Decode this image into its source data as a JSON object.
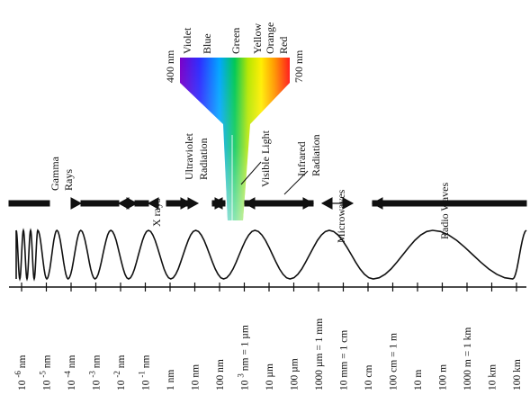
{
  "colors": {
    "ink": "#111111",
    "spectrum": [
      "#7a00c8",
      "#2d2dff",
      "#00a6ff",
      "#00c853",
      "#b6e600",
      "#ffee00",
      "#ff9800",
      "#ff1a1a"
    ]
  },
  "spectrum": {
    "short_end": "400 nm",
    "long_end": "700 nm",
    "colors": [
      "Violet",
      "Blue",
      "Green",
      "Yellow",
      "Orange",
      "Red"
    ]
  },
  "regions": {
    "gamma": [
      "Gamma",
      "Rays"
    ],
    "xrays": "X rays",
    "ultraviolet": [
      "Ultraviolet",
      "Radiation"
    ],
    "visible": "Visible Light",
    "infrared": [
      "Infrared",
      "Radiation"
    ],
    "microwaves": "Microwaves",
    "radio": "Radio Waves"
  },
  "scale": {
    "ticks": [
      {
        "base": "10",
        "exp": "-6",
        "unit": "nm"
      },
      {
        "base": "10",
        "exp": "-5",
        "unit": "nm"
      },
      {
        "base": "10",
        "exp": "-4",
        "unit": "nm"
      },
      {
        "base": "10",
        "exp": "-3",
        "unit": "nm"
      },
      {
        "base": "10",
        "exp": "-2",
        "unit": "nm"
      },
      {
        "base": "10",
        "exp": "-1",
        "unit": "nm"
      },
      {
        "text": "1 nm"
      },
      {
        "text": "10 nm"
      },
      {
        "text": "100 nm"
      },
      {
        "base": "10",
        "exp": "3",
        "unit": "nm = 1 µm"
      },
      {
        "text": "10 µm"
      },
      {
        "text": "100 µm"
      },
      {
        "text": "1000 µm = 1 mm"
      },
      {
        "text": "10 mm = 1 cm"
      },
      {
        "text": "10 cm"
      },
      {
        "text": "100 cm = 1 m"
      },
      {
        "text": "10 m"
      },
      {
        "text": "100 m"
      },
      {
        "text": "1000 m = 1 km"
      },
      {
        "text": "10 km"
      },
      {
        "text": "100 km"
      }
    ]
  }
}
